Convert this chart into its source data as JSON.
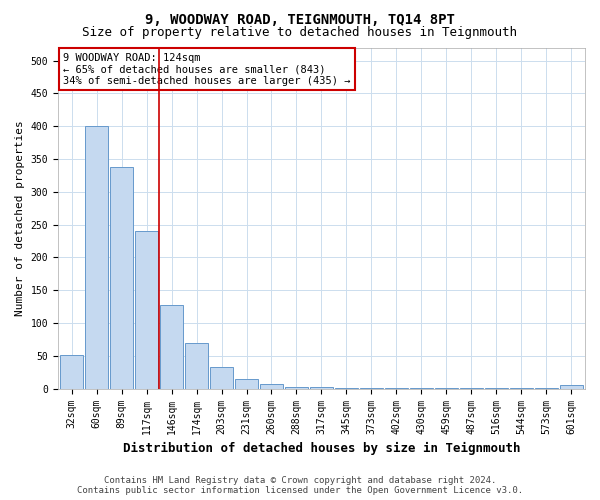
{
  "title": "9, WOODWAY ROAD, TEIGNMOUTH, TQ14 8PT",
  "subtitle": "Size of property relative to detached houses in Teignmouth",
  "xlabel": "Distribution of detached houses by size in Teignmouth",
  "ylabel": "Number of detached properties",
  "footer_line1": "Contains HM Land Registry data © Crown copyright and database right 2024.",
  "footer_line2": "Contains public sector information licensed under the Open Government Licence v3.0.",
  "bar_labels": [
    "32sqm",
    "60sqm",
    "89sqm",
    "117sqm",
    "146sqm",
    "174sqm",
    "203sqm",
    "231sqm",
    "260sqm",
    "288sqm",
    "317sqm",
    "345sqm",
    "373sqm",
    "402sqm",
    "430sqm",
    "459sqm",
    "487sqm",
    "516sqm",
    "544sqm",
    "573sqm",
    "601sqm"
  ],
  "bar_values": [
    51,
    400,
    338,
    241,
    128,
    70,
    33,
    15,
    7,
    3,
    2,
    1,
    1,
    1,
    1,
    1,
    1,
    1,
    1,
    1,
    5
  ],
  "bar_color": "#c5d9f0",
  "bar_edge_color": "#6699cc",
  "grid_color": "#ccddee",
  "background_color": "#ffffff",
  "ylim": [
    0,
    520
  ],
  "yticks": [
    0,
    50,
    100,
    150,
    200,
    250,
    300,
    350,
    400,
    450,
    500
  ],
  "annotation_text": "9 WOODWAY ROAD: 124sqm\n← 65% of detached houses are smaller (843)\n34% of semi-detached houses are larger (435) →",
  "annotation_box_color": "#ffffff",
  "annotation_box_edge_color": "#cc0000",
  "red_line_x": 3.5,
  "red_line_color": "#cc0000",
  "title_fontsize": 10,
  "subtitle_fontsize": 9,
  "xlabel_fontsize": 9,
  "ylabel_fontsize": 8,
  "tick_fontsize": 7,
  "annotation_fontsize": 7.5,
  "footer_fontsize": 6.5
}
